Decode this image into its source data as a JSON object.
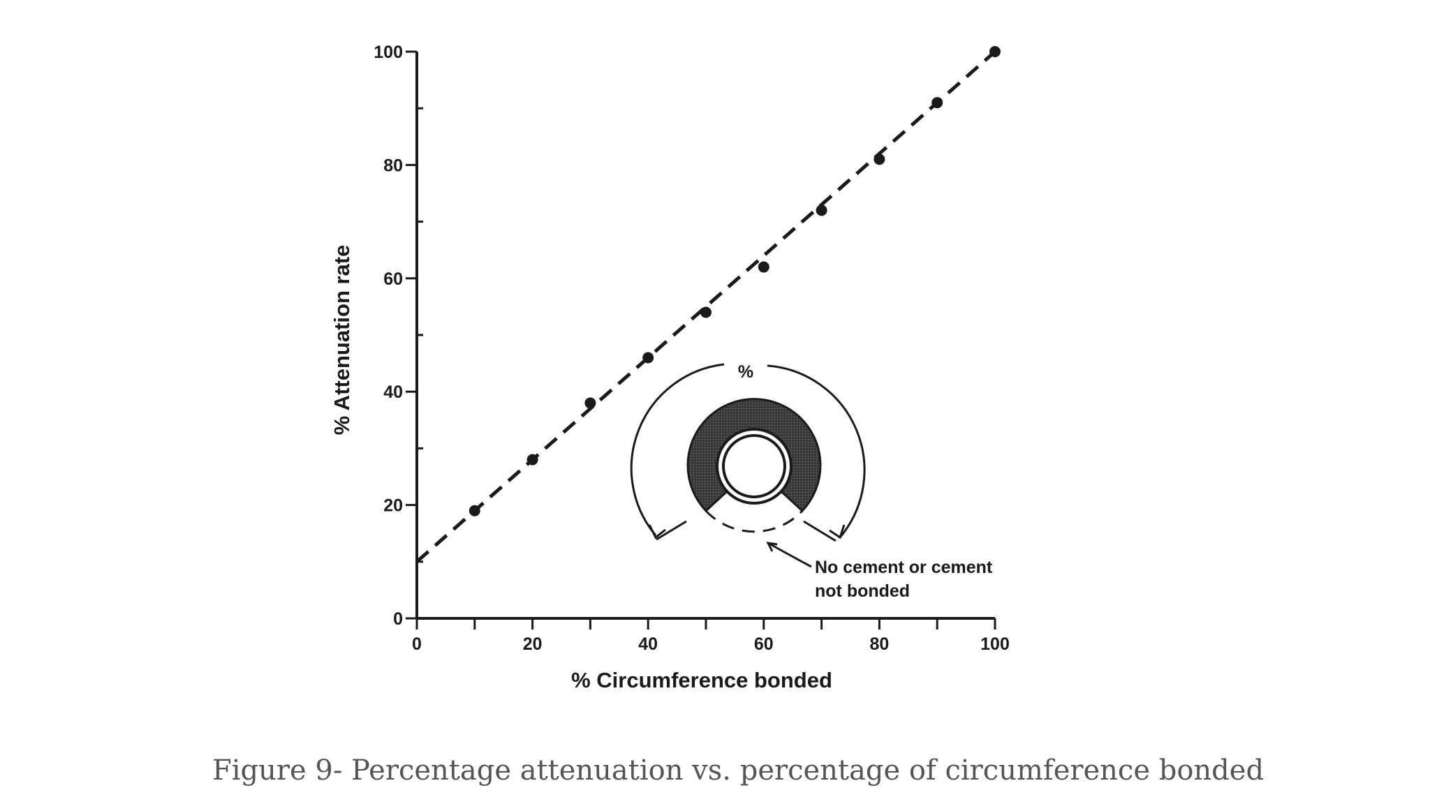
{
  "chart_data": {
    "type": "scatter",
    "title": "",
    "xlabel": "% Circumference bonded",
    "ylabel": "% Attenuation rate",
    "xlim": [
      0,
      100
    ],
    "ylim": [
      0,
      100
    ],
    "x_ticks": [
      0,
      20,
      40,
      60,
      80,
      100
    ],
    "y_ticks": [
      0,
      20,
      40,
      60,
      80,
      100
    ],
    "x_tick_labels": [
      "0",
      "20",
      "40",
      "60",
      "80",
      "100"
    ],
    "y_tick_labels": [
      "0",
      "20",
      "40",
      "60",
      "80",
      "100"
    ],
    "grid": false,
    "series": [
      {
        "name": "measured",
        "x": [
          10,
          20,
          30,
          40,
          50,
          60,
          70,
          80,
          90,
          100
        ],
        "y": [
          19,
          28,
          38,
          46,
          54,
          62,
          72,
          81,
          91,
          100
        ]
      }
    ],
    "trend_line": {
      "x": [
        0,
        100
      ],
      "y": [
        10,
        100
      ],
      "style": "dashed"
    },
    "inset_labels": {
      "percent": "%",
      "no_cement_line1": "No cement or cement",
      "no_cement_line2": "not bonded"
    }
  },
  "caption": "Figure 9- Percentage attenuation vs. percentage of circumference bonded",
  "colors": {
    "ink": "#1a1a1a",
    "shading": "#2e2e2e",
    "caption": "#555555"
  }
}
